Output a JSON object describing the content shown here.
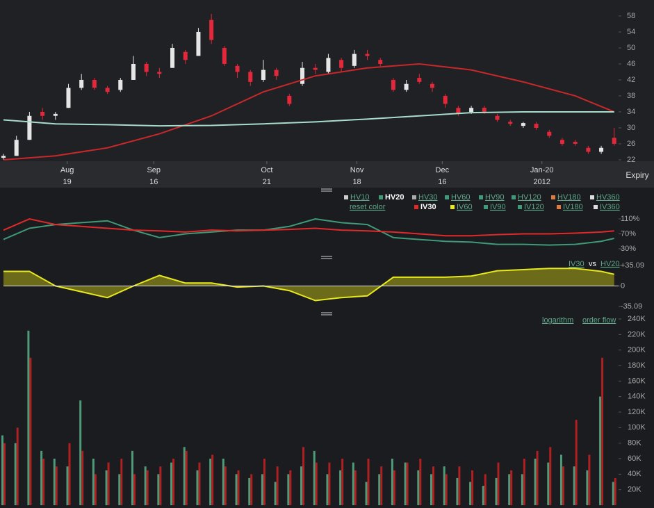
{
  "chart_data": [
    {
      "type": "candlestick",
      "x": [
        0,
        3,
        6,
        9,
        12,
        15,
        18,
        21,
        24,
        27,
        30,
        33,
        36,
        39,
        42,
        45,
        48,
        51,
        54,
        57,
        60,
        63,
        66,
        69,
        72,
        75,
        78,
        81,
        84,
        87,
        90,
        93,
        96,
        99,
        102,
        105,
        108,
        111,
        114,
        117,
        120,
        123,
        126,
        129,
        132,
        135,
        138,
        141
      ],
      "open": [
        22.5,
        23,
        27,
        34,
        33,
        35,
        40,
        42,
        40,
        39.5,
        42,
        46,
        44,
        45,
        49,
        48,
        57,
        50,
        45.5,
        44,
        42,
        44.5,
        38,
        41,
        45,
        44,
        47,
        45.5,
        48.5,
        47,
        42,
        39.5,
        42.5,
        41,
        38,
        35,
        34,
        35,
        33,
        31.5,
        30.5,
        31,
        29,
        27,
        26.5,
        25,
        24,
        27.5
      ],
      "high": [
        23.5,
        28,
        34,
        35,
        34,
        41,
        43.5,
        42.5,
        40.5,
        42.5,
        48,
        46.5,
        45,
        51,
        49.5,
        55,
        58.5,
        50.5,
        46,
        44.5,
        47,
        45,
        38.5,
        46.5,
        46,
        48.5,
        47.5,
        49.5,
        49.5,
        47.5,
        42.5,
        42,
        43.5,
        41.5,
        38.5,
        35.5,
        35.5,
        35.5,
        33.5,
        32,
        31.5,
        31.5,
        29.5,
        27.5,
        27,
        25.5,
        25.5,
        30
      ],
      "low": [
        22,
        23,
        27,
        32,
        32,
        35,
        39.5,
        39.5,
        38.5,
        39,
        42,
        43,
        42.5,
        45,
        46,
        48,
        51,
        45.5,
        42.5,
        40.5,
        41.5,
        42,
        35.5,
        40.5,
        43.5,
        43.5,
        44,
        45,
        47,
        45.5,
        39,
        39,
        41,
        39,
        35,
        33,
        33.5,
        33.5,
        31.5,
        30.5,
        30,
        29.5,
        27.5,
        25.5,
        25.5,
        23.5,
        23.5,
        25.5
      ],
      "close": [
        23,
        27,
        33,
        33,
        33.5,
        40,
        42,
        40,
        39,
        42,
        46,
        44,
        43.5,
        50,
        47,
        54,
        52,
        46,
        44,
        41.5,
        44.5,
        43,
        36,
        45,
        44.5,
        47.5,
        45,
        48.5,
        48,
        46,
        39.5,
        41,
        41.5,
        40,
        36,
        33.5,
        35,
        34,
        32,
        31,
        31.2,
        30,
        28,
        26,
        26,
        24,
        25,
        26
      ],
      "up_color": "#e6e6e6",
      "down_color": "#e2283a",
      "lines": [
        {
          "color": "#c8282a",
          "x": [
            0,
            12,
            24,
            36,
            48,
            60,
            72,
            84,
            96,
            108,
            120,
            132,
            141
          ],
          "values": [
            22,
            23,
            25,
            28.5,
            33,
            39,
            43,
            45,
            46,
            44.5,
            41.5,
            38,
            34
          ]
        },
        {
          "color": "#a8dccb",
          "x": [
            0,
            12,
            24,
            36,
            48,
            60,
            72,
            84,
            96,
            108,
            120,
            132,
            141
          ],
          "values": [
            32,
            31,
            30.8,
            30.5,
            30.6,
            31,
            31.5,
            32.2,
            33,
            33.8,
            34,
            34,
            34
          ]
        }
      ],
      "xlim": [
        0,
        142
      ],
      "ylim": [
        21.65,
        60.6
      ],
      "yticks": [
        22,
        26,
        30,
        34,
        38,
        42,
        46,
        50,
        54,
        58
      ],
      "xticks": [
        {
          "value": 14.7,
          "label": "Aug",
          "day": "19"
        },
        {
          "value": 34.7,
          "label": "Sep",
          "day": "16"
        },
        {
          "value": 60.8,
          "label": "Oct",
          "day": "21"
        },
        {
          "value": 81.6,
          "label": "Nov",
          "day": "18"
        },
        {
          "value": 101.3,
          "label": "Dec",
          "day": "16"
        },
        {
          "value": 124.3,
          "label": "Jan-20",
          "day": "2012"
        }
      ],
      "expiry_label": "Expiry"
    },
    {
      "type": "line",
      "xlim": [
        0,
        142
      ],
      "ylim": [
        17,
        138
      ],
      "yticks": [
        {
          "value": 110,
          "label": "110%"
        },
        {
          "value": 70,
          "label": "70%"
        },
        {
          "value": 30,
          "label": "30%"
        }
      ],
      "series": [
        {
          "color": "#3f9a78",
          "x": [
            0,
            6,
            12,
            18,
            24,
            30,
            36,
            42,
            48,
            54,
            60,
            66,
            72,
            78,
            84,
            90,
            96,
            102,
            108,
            114,
            120,
            126,
            132,
            138,
            141
          ],
          "values": [
            55,
            85,
            95,
            100,
            105,
            80,
            60,
            70,
            75,
            80,
            80,
            90,
            110,
            100,
            95,
            60,
            55,
            50,
            48,
            42,
            42,
            40,
            42,
            50,
            58
          ]
        },
        {
          "color": "#e02a2a",
          "x": [
            0,
            6,
            12,
            18,
            24,
            30,
            36,
            42,
            48,
            54,
            60,
            66,
            72,
            78,
            84,
            90,
            96,
            102,
            108,
            114,
            120,
            126,
            132,
            138,
            141
          ],
          "values": [
            80,
            110,
            95,
            90,
            85,
            80,
            78,
            75,
            80,
            78,
            80,
            82,
            85,
            80,
            78,
            75,
            70,
            65,
            65,
            68,
            70,
            70,
            72,
            75,
            78
          ]
        }
      ],
      "toggles": [
        [
          {
            "label": "HV10",
            "color": "#cccccc",
            "on": false
          },
          {
            "label": "HV20",
            "color": "#3f9a78",
            "on": true
          },
          {
            "label": "HV30",
            "color": "#aaaaaa",
            "on": false
          },
          {
            "label": "HV60",
            "color": "#3f9a78",
            "on": false
          },
          {
            "label": "HV90",
            "color": "#3f9a78",
            "on": false
          },
          {
            "label": "HV120",
            "color": "#3f9a78",
            "on": false
          },
          {
            "label": "HV180",
            "color": "#e07a40",
            "on": false
          },
          {
            "label": "HV360",
            "color": "#dddddd",
            "on": false
          }
        ],
        [
          {
            "label": "IV30",
            "color": "#e02a2a",
            "on": true
          },
          {
            "label": "IV60",
            "color": "#e8e81e",
            "on": false
          },
          {
            "label": "IV90",
            "color": "#3f9a78",
            "on": false
          },
          {
            "label": "IV120",
            "color": "#3f9a78",
            "on": false
          },
          {
            "label": "IV180",
            "color": "#e07a40",
            "on": false
          },
          {
            "label": "IV360",
            "color": "#dddddd",
            "on": false
          }
        ]
      ],
      "reset_label": "reset color"
    },
    {
      "type": "area",
      "xlim": [
        0,
        142
      ],
      "ylim": [
        -45.8,
        43.4
      ],
      "yticks": [
        {
          "value": 35.09,
          "label": "+35.09"
        },
        0,
        -35.09
      ],
      "color": "#e8e81e",
      "fill": "#6b6b1a",
      "x": [
        0,
        6,
        12,
        18,
        24,
        30,
        36,
        42,
        48,
        54,
        60,
        66,
        72,
        78,
        84,
        90,
        96,
        102,
        108,
        114,
        120,
        126,
        132,
        138,
        141
      ],
      "values": [
        25,
        25,
        0,
        -10,
        -20,
        0,
        18,
        5,
        5,
        -2,
        0,
        -8,
        -25,
        -20,
        -17,
        15,
        15,
        15,
        17,
        26,
        28,
        30,
        30,
        25,
        20
      ],
      "label_a": "IV30",
      "label_sep": "vs",
      "label_b": "HV20"
    },
    {
      "type": "bar",
      "xlim": [
        0,
        142
      ],
      "ylim": [
        0,
        243600
      ],
      "yticks": [
        {
          "value": 240000,
          "label": "240K"
        },
        {
          "value": 220000,
          "label": "220K"
        },
        {
          "value": 200000,
          "label": "200K"
        },
        {
          "value": 180000,
          "label": "180K"
        },
        {
          "value": 160000,
          "label": "160K"
        },
        {
          "value": 140000,
          "label": "140K"
        },
        {
          "value": 120000,
          "label": "120K"
        },
        {
          "value": 100000,
          "label": "100K"
        },
        {
          "value": 80000,
          "label": "80K"
        },
        {
          "value": 60000,
          "label": "60K"
        },
        {
          "value": 40000,
          "label": "40K"
        },
        {
          "value": 20000,
          "label": "20K"
        }
      ],
      "x": [
        0,
        3,
        6,
        9,
        12,
        15,
        18,
        21,
        24,
        27,
        30,
        33,
        36,
        39,
        42,
        45,
        48,
        51,
        54,
        57,
        60,
        63,
        66,
        69,
        72,
        75,
        78,
        81,
        84,
        87,
        90,
        93,
        96,
        99,
        102,
        105,
        108,
        111,
        114,
        117,
        120,
        123,
        126,
        129,
        132,
        135,
        138,
        141
      ],
      "series": [
        {
          "color": "#4f9a78",
          "values": [
            90000,
            80000,
            225000,
            70000,
            60000,
            50000,
            135000,
            60000,
            45000,
            40000,
            70000,
            50000,
            40000,
            55000,
            75000,
            45000,
            60000,
            60000,
            40000,
            35000,
            40000,
            30000,
            40000,
            50000,
            70000,
            40000,
            45000,
            55000,
            30000,
            40000,
            60000,
            55000,
            45000,
            40000,
            50000,
            35000,
            30000,
            25000,
            35000,
            40000,
            40000,
            60000,
            55000,
            65000,
            50000,
            45000,
            140000,
            30000
          ]
        },
        {
          "color": "#b02020",
          "values": [
            80000,
            100000,
            190000,
            60000,
            50000,
            80000,
            70000,
            40000,
            55000,
            60000,
            40000,
            45000,
            50000,
            60000,
            70000,
            55000,
            65000,
            50000,
            45000,
            40000,
            60000,
            50000,
            45000,
            75000,
            55000,
            55000,
            60000,
            45000,
            60000,
            50000,
            45000,
            55000,
            60000,
            50000,
            40000,
            50000,
            45000,
            40000,
            55000,
            45000,
            60000,
            70000,
            75000,
            50000,
            110000,
            65000,
            190000,
            35000
          ]
        }
      ],
      "links": [
        "logarithm",
        "order flow"
      ]
    }
  ]
}
